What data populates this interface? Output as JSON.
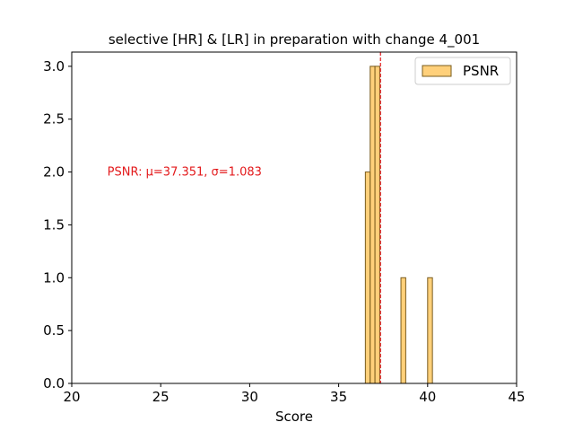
{
  "chart_data": {
    "type": "bar",
    "title": "selective [HR] & [LR] in preparation with change 4_001",
    "xlabel": "Score",
    "ylabel": "",
    "xlim": [
      20,
      45
    ],
    "ylim": [
      0,
      3.0
    ],
    "x_ticks": [
      "20",
      "25",
      "30",
      "35",
      "40",
      "45"
    ],
    "y_ticks": [
      "0.0",
      "0.5",
      "1.0",
      "1.5",
      "2.0",
      "2.5",
      "3.0"
    ],
    "bin_width": 0.27,
    "series": [
      {
        "name": "PSNR",
        "bins": [
          {
            "x0": 36.5,
            "count": 2
          },
          {
            "x0": 36.77,
            "count": 3
          },
          {
            "x0": 37.04,
            "count": 3
          },
          {
            "x0": 38.5,
            "count": 1
          },
          {
            "x0": 40.0,
            "count": 1
          }
        ],
        "color": "#ffc04d",
        "edge_color": "#7a5c1e"
      }
    ],
    "mean_line": {
      "x": 37.351,
      "color": "#e31a1c"
    },
    "annotation": {
      "text": "PSNR: μ=37.351, σ=1.083",
      "x": 22.0,
      "y": 2.0,
      "color": "#e31a1c"
    },
    "legend": {
      "position": "top-right",
      "entries": [
        "PSNR"
      ]
    },
    "grid": false
  }
}
